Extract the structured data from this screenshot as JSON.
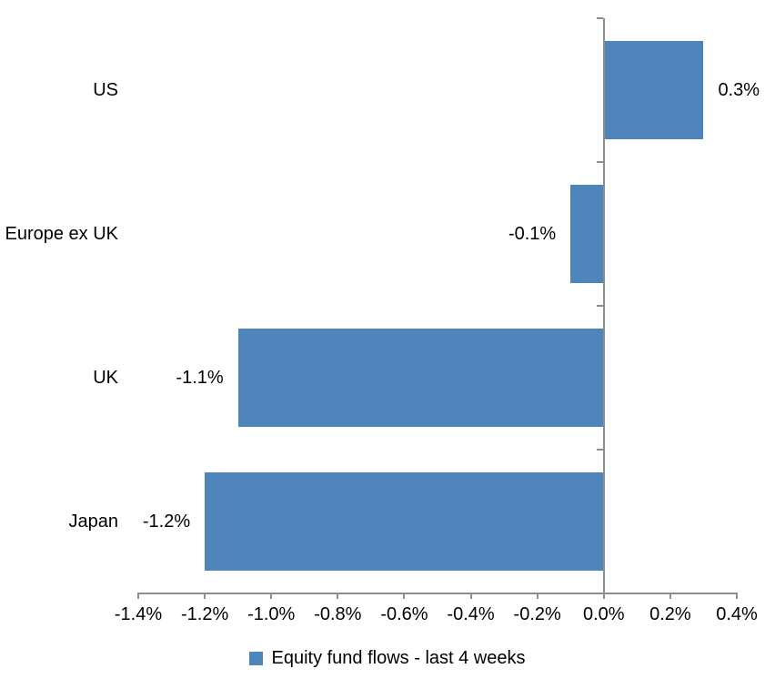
{
  "chart_data": {
    "type": "bar",
    "orientation": "horizontal",
    "title": "",
    "categories": [
      "US",
      "Europe ex UK",
      "UK",
      "Japan"
    ],
    "values": [
      0.3,
      -0.1,
      -1.1,
      -1.2
    ],
    "value_labels": [
      "0.3%",
      "-0.1%",
      "-1.1%",
      "-1.2%"
    ],
    "series_name": "Equity fund flows - last 4 weeks",
    "xlabel": "",
    "ylabel": "",
    "xlim": [
      -1.4,
      0.4
    ],
    "x_tick_values": [
      -1.4,
      -1.2,
      -1.0,
      -0.8,
      -0.6,
      -0.4,
      -0.2,
      0.0,
      0.2,
      0.4
    ],
    "x_ticks": [
      "-1.4%",
      "-1.2%",
      "-1.0%",
      "-0.8%",
      "-0.6%",
      "-0.4%",
      "-0.2%",
      "0.0%",
      "0.2%",
      "0.4%"
    ],
    "grid": false,
    "legend_position": "bottom",
    "bar_color": "#4E86BC",
    "axis_color": "#8E8E8E",
    "text_color": "#000000"
  }
}
